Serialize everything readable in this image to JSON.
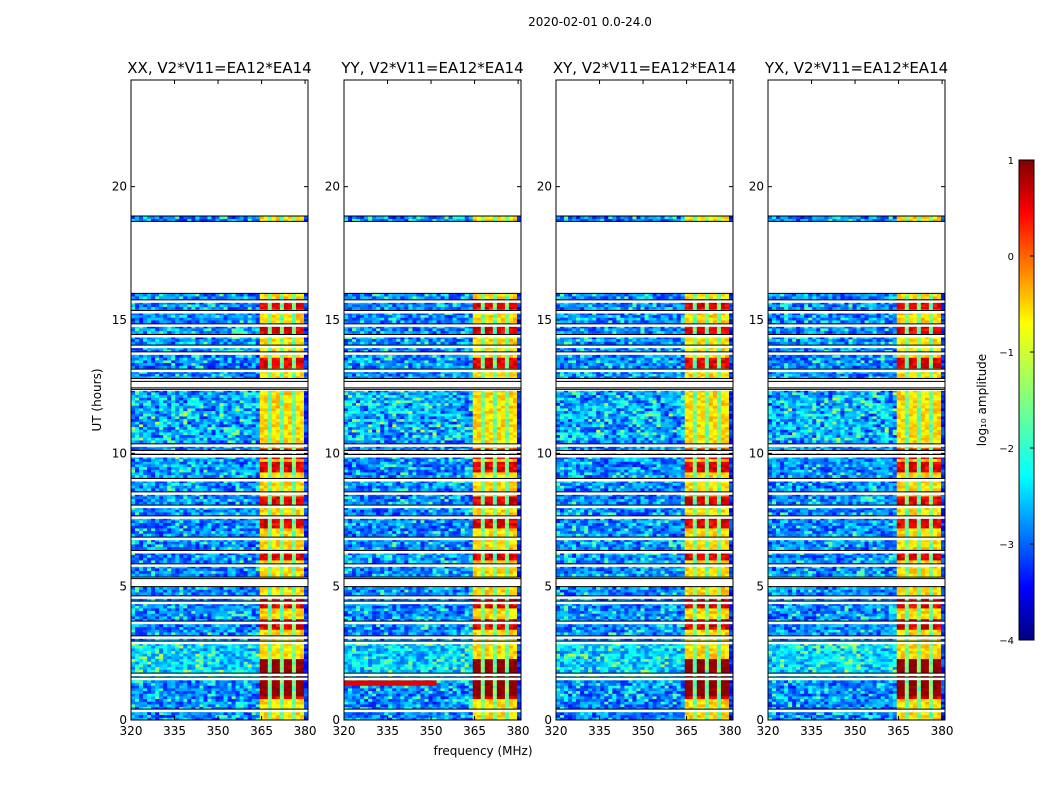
{
  "figure_title": "2020-02-01 0.0-24.0",
  "chart_data": {
    "type": "heatmap",
    "suptitle": "2020-02-01 0.0-24.0",
    "xlabel": "frequency (MHz)",
    "ylabel": "UT (hours)",
    "xlim": [
      320,
      381
    ],
    "ylim": [
      0,
      24
    ],
    "xticks": [
      320,
      335,
      350,
      365,
      380
    ],
    "yticks": [
      0,
      5,
      10,
      15,
      20
    ],
    "panels": [
      {
        "title": "XX, V2*V11=EA12*EA14",
        "pol": "XX"
      },
      {
        "title": "YY, V2*V11=EA12*EA14",
        "pol": "YY"
      },
      {
        "title": "XY, V2*V11=EA12*EA14",
        "pol": "XY"
      },
      {
        "title": "YX, V2*V11=EA12*EA14",
        "pol": "YX"
      }
    ],
    "data_segments_hours": [
      [
        0.0,
        5.0
      ],
      [
        5.3,
        12.4
      ],
      [
        12.7,
        16.0
      ],
      [
        18.7,
        18.9
      ]
    ],
    "gap_lines_hours": [
      0.35,
      1.55,
      1.7,
      2.9,
      3.1,
      3.65,
      4.4,
      4.6,
      5.3,
      5.8,
      6.3,
      6.8,
      7.6,
      8.0,
      8.5,
      9.0,
      9.9,
      10.05,
      10.3,
      12.4,
      12.75,
      13.1,
      13.75,
      14.0,
      14.4,
      14.8,
      15.3,
      15.7
    ],
    "bright_band_MHz": [
      364,
      380
    ],
    "bright_band_rows_hours": [
      1.0,
      1.5,
      2.05,
      3.6,
      4.4,
      6.2,
      7.4,
      8.2,
      9.5,
      10.0,
      13.4,
      14.6,
      15.6
    ],
    "colorbar": {
      "label": "log₁₀ amplitude",
      "range": [
        -4,
        1
      ],
      "ticks": [
        1,
        0,
        -1,
        -2,
        -3,
        -4
      ],
      "colormap": "jet"
    }
  }
}
